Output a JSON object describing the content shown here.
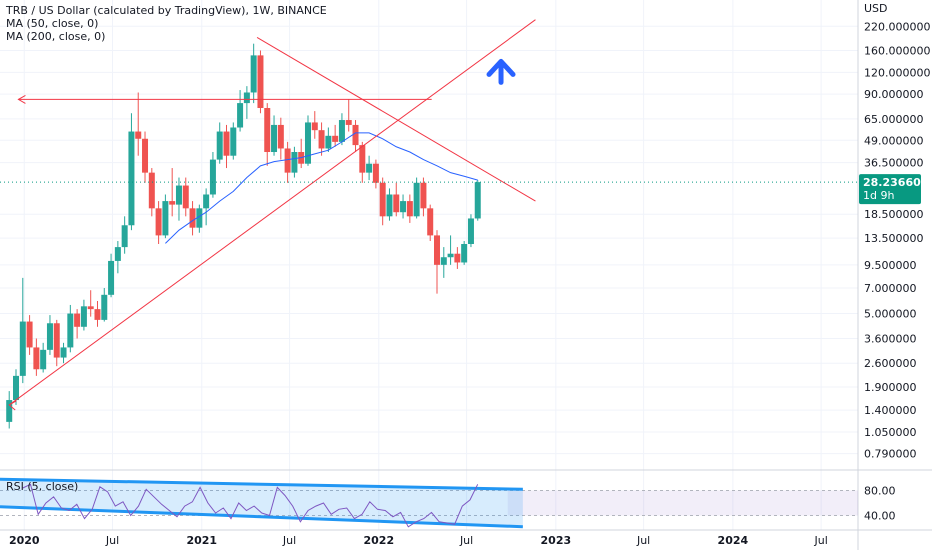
{
  "legend": {
    "title": "TRB / US Dollar (calculated by TradingView), 1W, BINANCE",
    "ma50": "MA (50, close, 0)",
    "ma200": "MA (200, close, 0)"
  },
  "rsi": {
    "label": "RSI (5, close)",
    "ticks": [
      "80.00",
      "40.00"
    ],
    "levels": [
      80,
      40
    ],
    "values": [
      84,
      90,
      42,
      60,
      70,
      52,
      48,
      58,
      35,
      50,
      86,
      78,
      55,
      62,
      40,
      55,
      82,
      70,
      58,
      48,
      38,
      55,
      62,
      85,
      60,
      44,
      52,
      35,
      60,
      48,
      55,
      44,
      40,
      85,
      72,
      55,
      30,
      48,
      55,
      60,
      42,
      50,
      52,
      35,
      42,
      62,
      50,
      48,
      38,
      45,
      22,
      30,
      35,
      45,
      30,
      28,
      26,
      55,
      65,
      90
    ]
  },
  "colors": {
    "up": "#26a69a",
    "down": "#ef5350",
    "ma": "#2962ff",
    "trendline": "#f23645",
    "price_tag": "#089981",
    "rsi_line": "#7e57c2",
    "channel": "#2196f3",
    "arrow_up": "#2962ff"
  },
  "icons": {
    "annotation_arrow": "arrow-up-icon"
  },
  "chart_data": {
    "type": "candlestick",
    "title": "TRB / US Dollar (calculated by TradingView), 1W, BINANCE",
    "currency": "USD",
    "y_scale": "log",
    "ylim": [
      0.68,
      280
    ],
    "y_ticks": [
      {
        "v": 220,
        "label": "220.000000"
      },
      {
        "v": 160,
        "label": "160.000000"
      },
      {
        "v": 120,
        "label": "120.000000"
      },
      {
        "v": 90,
        "label": "90.000000"
      },
      {
        "v": 65,
        "label": "65.000000"
      },
      {
        "v": 49,
        "label": "49.000000"
      },
      {
        "v": 36.5,
        "label": "36.500000"
      },
      {
        "v": 18.5,
        "label": "18.500000"
      },
      {
        "v": 13.5,
        "label": "13.500000"
      },
      {
        "v": 9.5,
        "label": "9.500000"
      },
      {
        "v": 7,
        "label": "7.000000"
      },
      {
        "v": 5,
        "label": "5.000000"
      },
      {
        "v": 3.6,
        "label": "3.600000"
      },
      {
        "v": 2.6,
        "label": "2.600000"
      },
      {
        "v": 1.9,
        "label": "1.900000"
      },
      {
        "v": 1.4,
        "label": "1.400000"
      },
      {
        "v": 1.05,
        "label": "1.050000"
      },
      {
        "v": 0.79,
        "label": "0.790000"
      }
    ],
    "x_ticks": [
      {
        "date": "2020-01-01",
        "label": "2020"
      },
      {
        "date": "2020-07-01",
        "label": "Jul"
      },
      {
        "date": "2021-01-01",
        "label": "2021"
      },
      {
        "date": "2021-07-01",
        "label": "Jul"
      },
      {
        "date": "2022-01-01",
        "label": "2022"
      },
      {
        "date": "2022-07-01",
        "label": "Jul"
      },
      {
        "date": "2023-01-01",
        "label": "2023"
      },
      {
        "date": "2023-07-01",
        "label": "Jul"
      },
      {
        "date": "2024-01-01",
        "label": "2024"
      },
      {
        "date": "2024-07-01",
        "label": "Jul"
      }
    ],
    "xlim": [
      "2019-11-12",
      "2024-09-15"
    ],
    "last_price": {
      "label": "28.236606",
      "countdown": "1d 9h",
      "value": 28.24
    },
    "candles": [
      [
        "2019-12-01",
        1.2,
        1.8,
        1.1,
        1.6
      ],
      [
        "2019-12-15",
        1.6,
        2.4,
        1.5,
        2.2
      ],
      [
        "2019-12-29",
        2.2,
        8.0,
        2.0,
        4.5
      ],
      [
        "2020-01-12",
        4.5,
        4.9,
        2.9,
        3.2
      ],
      [
        "2020-01-26",
        3.2,
        3.6,
        2.2,
        2.4
      ],
      [
        "2020-02-09",
        2.4,
        3.4,
        2.3,
        3.1
      ],
      [
        "2020-02-23",
        3.1,
        4.9,
        2.9,
        4.4
      ],
      [
        "2020-03-08",
        4.4,
        4.6,
        2.5,
        2.8
      ],
      [
        "2020-03-22",
        2.8,
        3.4,
        2.6,
        3.2
      ],
      [
        "2020-04-05",
        3.2,
        5.6,
        3.0,
        5.0
      ],
      [
        "2020-04-19",
        5.0,
        5.3,
        3.6,
        4.2
      ],
      [
        "2020-05-03",
        4.2,
        6.0,
        4.0,
        5.5
      ],
      [
        "2020-05-17",
        5.5,
        6.8,
        4.8,
        5.3
      ],
      [
        "2020-05-31",
        5.3,
        5.9,
        4.2,
        4.6
      ],
      [
        "2020-06-14",
        4.6,
        7.0,
        4.5,
        6.4
      ],
      [
        "2020-06-28",
        6.4,
        11.0,
        6.2,
        10.0
      ],
      [
        "2020-07-12",
        10.0,
        13.0,
        8.5,
        12.0
      ],
      [
        "2020-07-26",
        12.0,
        18.0,
        11.0,
        16.0
      ],
      [
        "2020-08-09",
        16.0,
        70.0,
        15.0,
        55.0
      ],
      [
        "2020-08-23",
        55.0,
        92.0,
        40.0,
        50.0
      ],
      [
        "2020-09-06",
        50.0,
        55.0,
        28.0,
        32.0
      ],
      [
        "2020-09-20",
        32.0,
        34.0,
        18.0,
        20.0
      ],
      [
        "2020-10-04",
        20.0,
        22.0,
        12.5,
        14.0
      ],
      [
        "2020-10-18",
        14.0,
        24.0,
        13.5,
        22.0
      ],
      [
        "2020-11-01",
        22.0,
        34.0,
        18.0,
        21.0
      ],
      [
        "2020-11-15",
        21.0,
        30.0,
        17.0,
        27.0
      ],
      [
        "2020-11-29",
        27.0,
        30.0,
        18.0,
        20.0
      ],
      [
        "2020-12-13",
        20.0,
        22.0,
        14.0,
        15.5
      ],
      [
        "2020-12-27",
        15.5,
        21.0,
        14.5,
        20.0
      ],
      [
        "2021-01-10",
        20.0,
        26.0,
        16.0,
        24.0
      ],
      [
        "2021-01-24",
        24.0,
        42.0,
        23.0,
        38.0
      ],
      [
        "2021-02-07",
        38.0,
        62.0,
        36.0,
        55.0
      ],
      [
        "2021-02-21",
        55.0,
        60.0,
        34.0,
        40.0
      ],
      [
        "2021-03-07",
        40.0,
        62.0,
        38.0,
        58.0
      ],
      [
        "2021-03-21",
        58.0,
        95.0,
        55.0,
        80.0
      ],
      [
        "2021-04-04",
        80.0,
        100.0,
        65.0,
        92.0
      ],
      [
        "2021-04-18",
        92.0,
        175.0,
        80.0,
        150.0
      ],
      [
        "2021-05-02",
        150.0,
        160.0,
        70.0,
        75.0
      ],
      [
        "2021-05-16",
        75.0,
        80.0,
        35.0,
        42.0
      ],
      [
        "2021-05-30",
        42.0,
        68.0,
        40.0,
        60.0
      ],
      [
        "2021-06-13",
        60.0,
        66.0,
        38.0,
        44.0
      ],
      [
        "2021-06-27",
        44.0,
        48.0,
        28.0,
        32.0
      ],
      [
        "2021-07-11",
        32.0,
        45.0,
        30.0,
        42.0
      ],
      [
        "2021-07-25",
        42.0,
        50.0,
        34.0,
        36.0
      ],
      [
        "2021-08-08",
        36.0,
        68.0,
        35.0,
        62.0
      ],
      [
        "2021-08-22",
        62.0,
        72.0,
        50.0,
        56.0
      ],
      [
        "2021-09-05",
        56.0,
        62.0,
        40.0,
        44.0
      ],
      [
        "2021-09-19",
        44.0,
        58.0,
        42.0,
        52.0
      ],
      [
        "2021-10-03",
        52.0,
        60.0,
        45.0,
        48.0
      ],
      [
        "2021-10-17",
        48.0,
        70.0,
        46.0,
        64.0
      ],
      [
        "2021-10-31",
        64.0,
        84.0,
        55.0,
        60.0
      ],
      [
        "2021-11-14",
        60.0,
        64.0,
        42.0,
        46.0
      ],
      [
        "2021-11-28",
        46.0,
        48.0,
        28.0,
        32.0
      ],
      [
        "2021-12-12",
        32.0,
        40.0,
        29.0,
        36.0
      ],
      [
        "2021-12-26",
        36.0,
        38.0,
        26.0,
        28.0
      ],
      [
        "2022-01-09",
        28.0,
        30.0,
        16.0,
        18.0
      ],
      [
        "2022-01-23",
        18.0,
        26.0,
        17.0,
        24.0
      ],
      [
        "2022-02-06",
        24.0,
        28.0,
        18.0,
        19.0
      ],
      [
        "2022-02-20",
        19.0,
        24.0,
        17.5,
        22.0
      ],
      [
        "2022-03-06",
        22.0,
        24.0,
        16.5,
        18.0
      ],
      [
        "2022-03-20",
        18.0,
        30.0,
        17.5,
        28.0
      ],
      [
        "2022-04-03",
        28.0,
        30.0,
        18.0,
        20.0
      ],
      [
        "2022-04-17",
        20.0,
        21.0,
        13.0,
        14.0
      ],
      [
        "2022-05-01",
        14.0,
        15.0,
        6.5,
        9.5
      ],
      [
        "2022-05-15",
        9.5,
        12.0,
        8.0,
        10.5
      ],
      [
        "2022-05-29",
        10.5,
        14.0,
        9.5,
        11.0
      ],
      [
        "2022-06-12",
        11.0,
        12.0,
        9.0,
        9.8
      ],
      [
        "2022-06-26",
        9.8,
        13.0,
        9.5,
        12.5
      ],
      [
        "2022-07-10",
        12.5,
        18.5,
        12.0,
        17.5
      ],
      [
        "2022-07-24",
        17.5,
        29.0,
        17.0,
        28.24
      ]
    ],
    "ma50": [
      [
        "2020-10-18",
        12.6
      ],
      [
        "2020-11-15",
        15.0
      ],
      [
        "2020-12-13",
        17.0
      ],
      [
        "2021-01-10",
        19.0
      ],
      [
        "2021-02-07",
        22.0
      ],
      [
        "2021-03-07",
        25.0
      ],
      [
        "2021-04-04",
        30.0
      ],
      [
        "2021-05-02",
        35.0
      ],
      [
        "2021-05-30",
        37.0
      ],
      [
        "2021-06-27",
        38.0
      ],
      [
        "2021-07-25",
        39.0
      ],
      [
        "2021-08-22",
        41.0
      ],
      [
        "2021-09-19",
        43.0
      ],
      [
        "2021-10-17",
        48.0
      ],
      [
        "2021-11-14",
        54.0
      ],
      [
        "2021-12-12",
        54.0
      ],
      [
        "2022-01-09",
        50.0
      ],
      [
        "2022-02-06",
        45.0
      ],
      [
        "2022-03-06",
        42.0
      ],
      [
        "2022-04-03",
        38.0
      ],
      [
        "2022-05-01",
        35.0
      ],
      [
        "2022-05-29",
        32.0
      ],
      [
        "2022-06-26",
        30.5
      ],
      [
        "2022-07-24",
        29.0
      ]
    ],
    "drawings": [
      {
        "type": "trendline",
        "from": [
          "2019-12-01",
          1.5
        ],
        "to": [
          "2022-11-20",
          240
        ]
      },
      {
        "type": "trendline",
        "from": [
          "2021-04-25",
          190
        ],
        "to": [
          "2022-11-20",
          22
        ]
      },
      {
        "type": "horizontal_ray_left",
        "from": [
          "2022-04-20",
          84
        ],
        "to": [
          "2019-12-20",
          84
        ]
      }
    ]
  }
}
